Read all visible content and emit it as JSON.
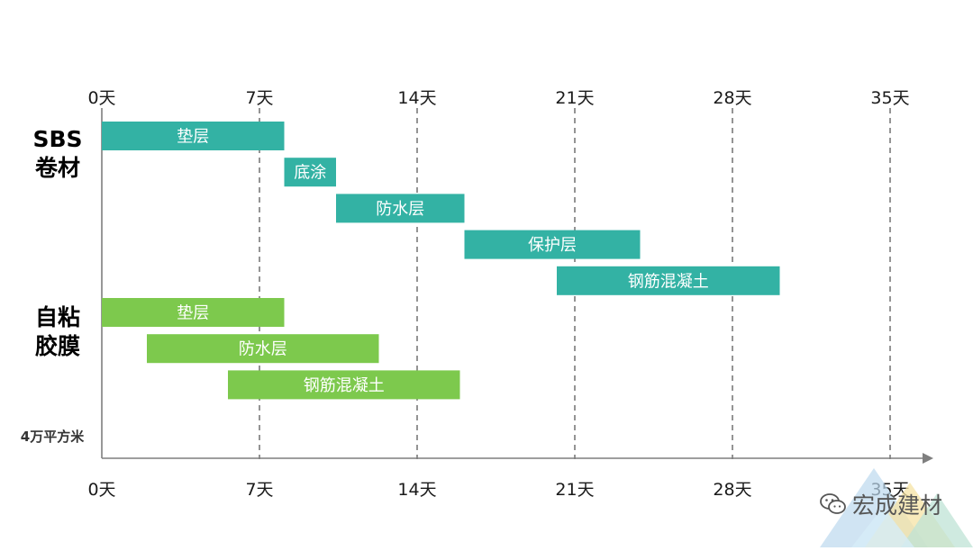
{
  "chart_data": {
    "type": "gantt",
    "x_unit": "天",
    "xlim": [
      0,
      35
    ],
    "ticks": [
      0,
      7,
      14,
      21,
      28,
      35
    ],
    "tick_labels_top": [
      "0天",
      "7天",
      "14天",
      "21天",
      "28天",
      "35天"
    ],
    "tick_labels_bottom": [
      "0天",
      "7天",
      "14天",
      "21天",
      "28天",
      "35天"
    ],
    "grid": "vertical dashed",
    "groups": [
      {
        "name_lines": [
          "SBS",
          "卷材"
        ],
        "color": "#33b2a4",
        "tasks": [
          {
            "label": "垫层",
            "start": 0,
            "end": 8.1
          },
          {
            "label": "底涂",
            "start": 8.1,
            "end": 10.4
          },
          {
            "label": "防水层",
            "start": 10.4,
            "end": 16.1
          },
          {
            "label": "保护层",
            "start": 16.1,
            "end": 23.9
          },
          {
            "label": "钢筋混凝土",
            "start": 20.2,
            "end": 30.1
          }
        ]
      },
      {
        "name_lines": [
          "自粘",
          "胶膜"
        ],
        "color": "#7dc94d",
        "tasks": [
          {
            "label": "垫层",
            "start": 0,
            "end": 8.1
          },
          {
            "label": "防水层",
            "start": 2.0,
            "end": 12.3
          },
          {
            "label": "钢筋混凝土",
            "start": 5.6,
            "end": 15.9
          }
        ]
      }
    ],
    "note": "4万平方米"
  },
  "watermark": {
    "text": "宏成建材",
    "icon": "wechat-icon"
  }
}
